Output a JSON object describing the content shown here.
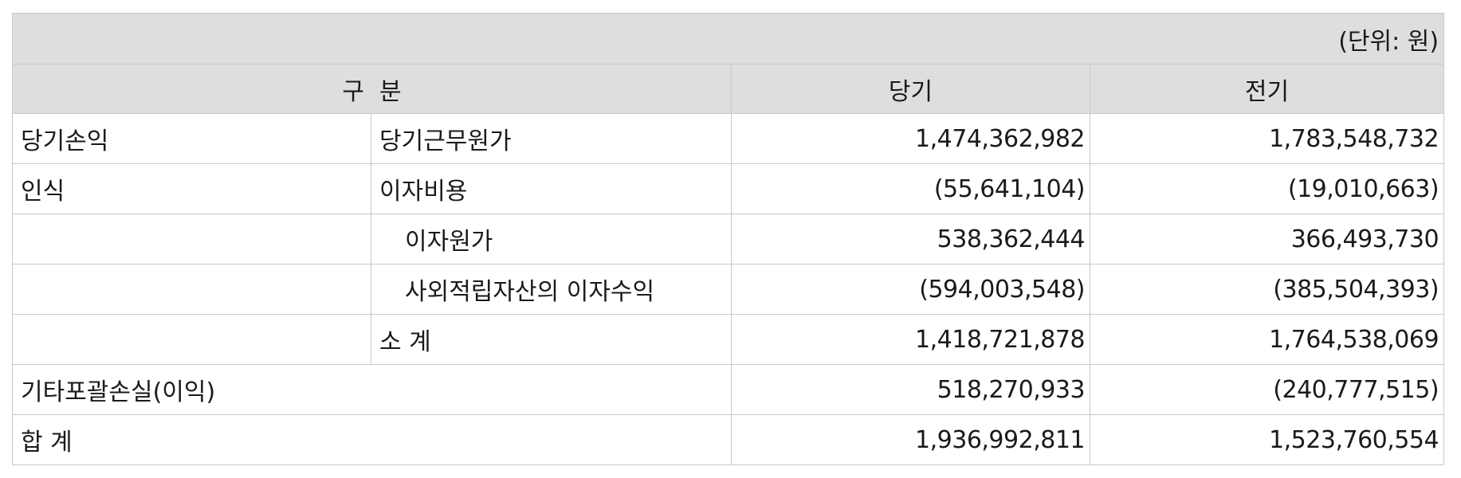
{
  "unit_label": "(단위: 원)",
  "headers": {
    "category": "구  분",
    "current": "당기",
    "prior": "전기"
  },
  "rows": [
    {
      "group": "당기손익",
      "item": "당기근무원가",
      "current": "1,474,362,982",
      "prior": "1,783,548,732"
    },
    {
      "group": "인식",
      "item": "이자비용",
      "current": "(55,641,104)",
      "prior": "(19,010,663)"
    },
    {
      "group": "",
      "item": "이자원가",
      "current": "538,362,444",
      "prior": "366,493,730"
    },
    {
      "group": "",
      "item": "사외적립자산의 이자수익",
      "current": "(594,003,548)",
      "prior": "(385,504,393)"
    },
    {
      "group": "",
      "item": "소 계",
      "current": "1,418,721,878",
      "prior": "1,764,538,069"
    }
  ],
  "other_comprehensive": {
    "label": "기타포괄손실(이익)",
    "current": "518,270,933",
    "prior": "(240,777,515)"
  },
  "total": {
    "label": "합 계",
    "current": "1,936,992,811",
    "prior": "1,523,760,554"
  }
}
